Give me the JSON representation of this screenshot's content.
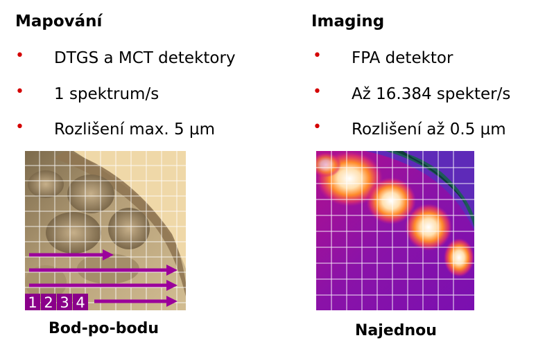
{
  "left": {
    "heading": "Mapování",
    "bullets": [
      "DTGS a MCT detektory",
      "1 spektrum/s",
      "Rozlišení max. 5 µm"
    ],
    "numbers": [
      "1",
      "2",
      "3",
      "4"
    ],
    "caption": "Bod-po-bodu"
  },
  "right": {
    "heading": "Imaging",
    "bullets": [
      "FPA detektor",
      "Až 16.384 spekter/s",
      "Rozlišení až 0.5 µm"
    ],
    "caption": "Najednou"
  },
  "colors": {
    "bullet": "#d40000",
    "arrow": "#9b009b",
    "number_box": "#8a008a"
  }
}
